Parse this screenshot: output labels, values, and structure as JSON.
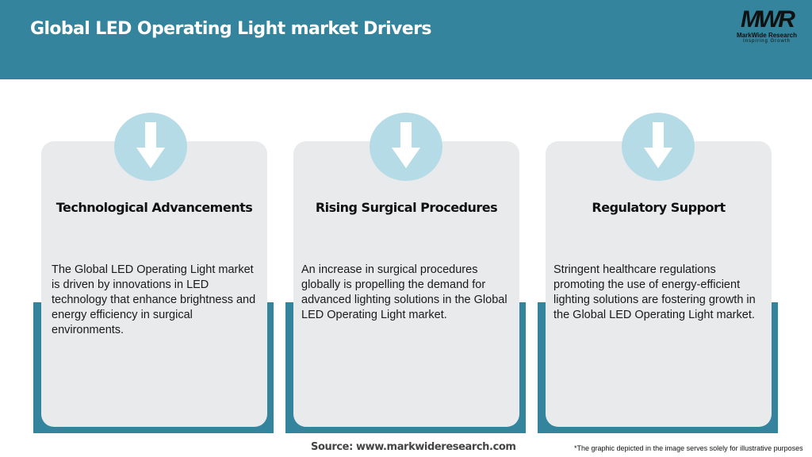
{
  "header": {
    "title": "Global LED Operating Light market Drivers"
  },
  "logo": {
    "mark": "MWR",
    "name": "MarkWide Research",
    "tagline": "Inspiring Growth"
  },
  "colors": {
    "header": "#33849c",
    "card": "#e8eaec",
    "circle": "#b5dbe6"
  },
  "cards": [
    {
      "icon": "arrow-down-icon",
      "title": "Technological Advancements",
      "text": "The Global LED Operating Light market is driven by innovations in LED technology that enhance brightness and energy efficiency in surgical environments."
    },
    {
      "icon": "arrow-down-icon",
      "title": "Rising Surgical Procedures",
      "text": "An increase in surgical procedures globally is propelling the demand for advanced lighting solutions in the Global LED Operating Light market."
    },
    {
      "icon": "arrow-down-icon",
      "title": "Regulatory Support",
      "text": "Stringent healthcare regulations promoting the use of energy-efficient lighting solutions are fostering growth in the Global LED Operating Light market."
    }
  ],
  "footer": {
    "source": "Source: www.markwideresearch.com",
    "note": "*The graphic depicted in the image serves solely for illustrative purposes"
  }
}
